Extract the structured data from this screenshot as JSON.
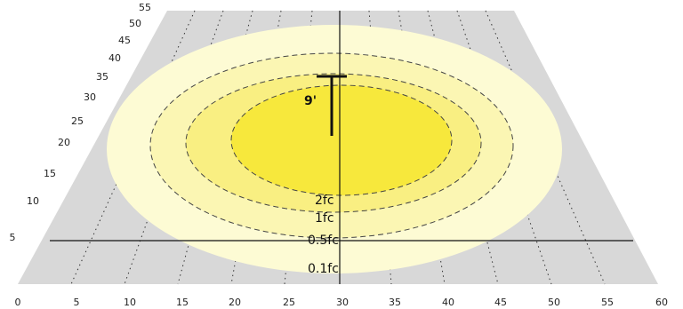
{
  "diagram": {
    "x_axis_ticks": [
      "0",
      "5",
      "10",
      "15",
      "20",
      "25",
      "30",
      "35",
      "40",
      "45",
      "50",
      "55",
      "60"
    ],
    "y_axis_ticks": [
      "5",
      "10",
      "15",
      "20",
      "25",
      "30",
      "35",
      "40",
      "45",
      "50",
      "55"
    ],
    "contours": [
      {
        "label": "0.1fc",
        "color": "#fdfbd4"
      },
      {
        "label": "0.5fc",
        "color": "#fbf6b3"
      },
      {
        "label": "1fc",
        "color": "#f9ef82"
      },
      {
        "label": "2fc",
        "color": "#f7e83c"
      }
    ],
    "mounting_height_label": "9'",
    "colors": {
      "floor": "#d8d8d8",
      "grid_lines": "#333333"
    }
  }
}
